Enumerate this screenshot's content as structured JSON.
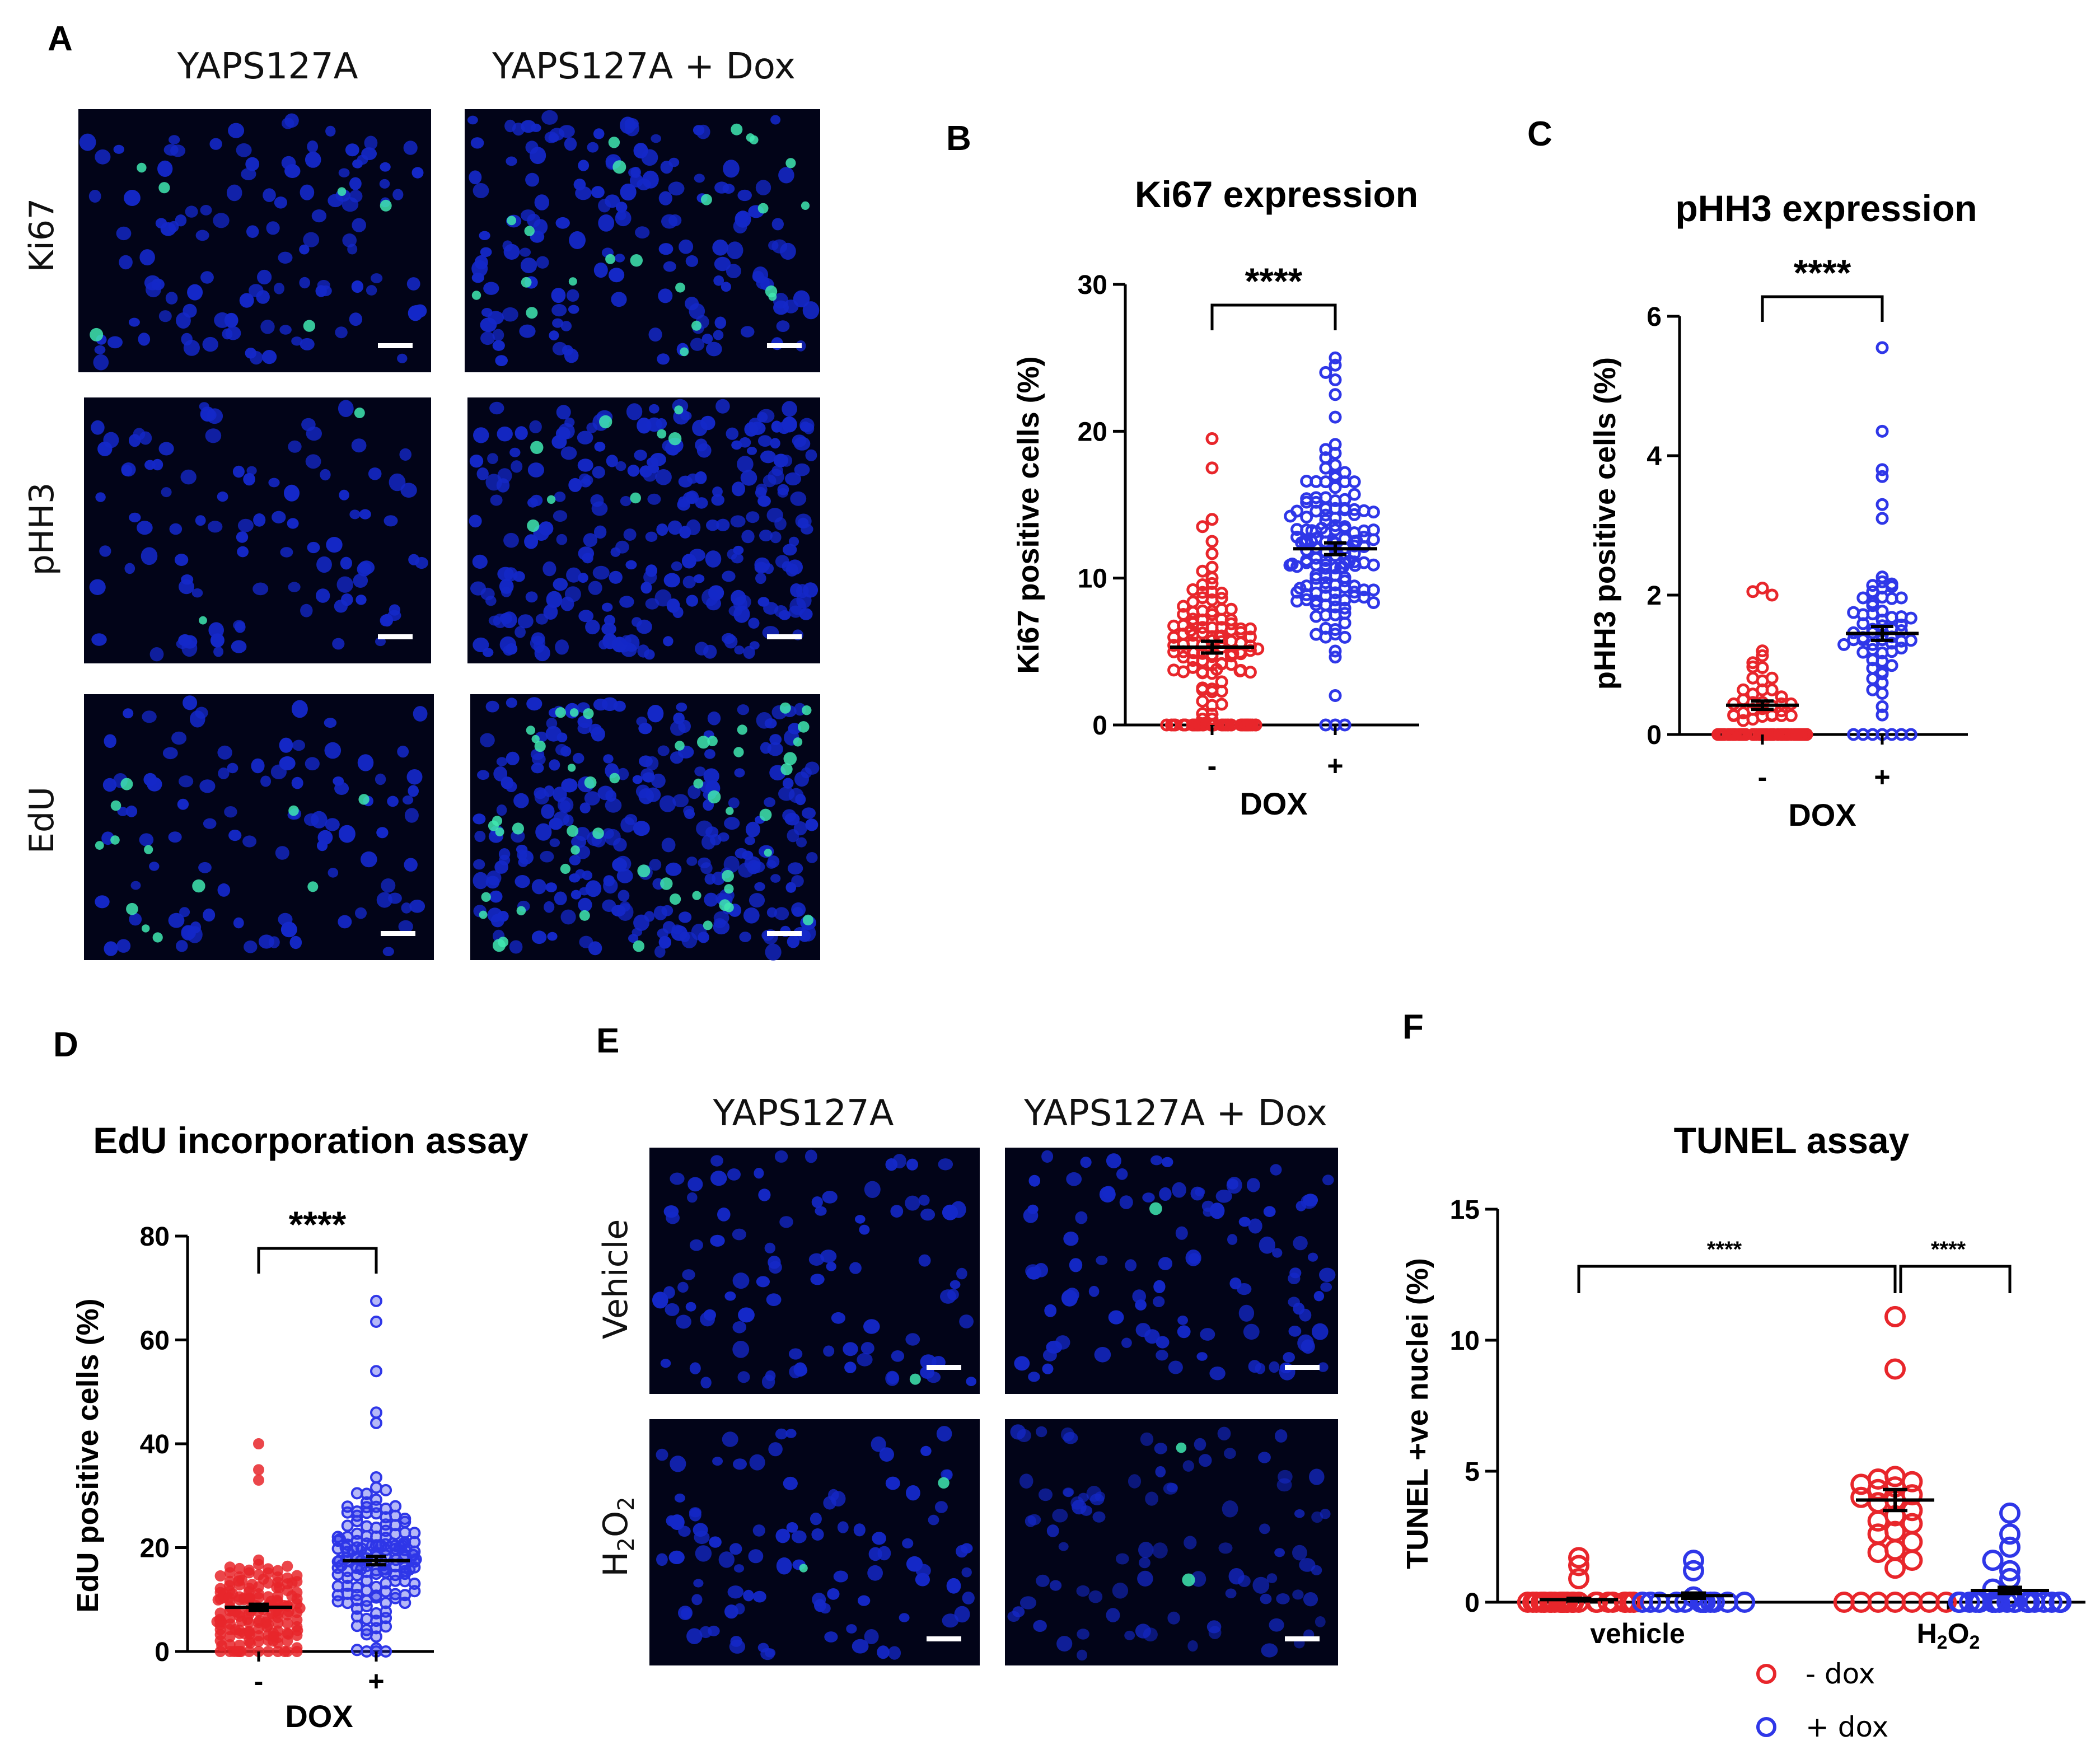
{
  "panels": {
    "A": "A",
    "B": "B",
    "C": "C",
    "D": "D",
    "E": "E",
    "F": "F"
  },
  "micro_A": {
    "col_headers": [
      "YAPS127A",
      "YAPS127A + Dox"
    ],
    "row_labels": [
      "Ki67",
      "pHH3",
      "EdU"
    ]
  },
  "micro_E": {
    "col_headers": [
      "YAPS127A",
      "YAPS127A + Dox"
    ],
    "row_labels": [
      "Vehicle",
      "H2O2"
    ]
  },
  "colors": {
    "neg": "#e8262b",
    "pos": "#2f37e8",
    "micro_bg": "#020418",
    "nucleus": "#1428c8",
    "stain": "#40e8b0"
  },
  "chart_data": [
    {
      "id": "B",
      "type": "scatter",
      "title": "Ki67 expression",
      "ylabel": "Ki67 positive cells (%)",
      "xlabel": "DOX",
      "categories": [
        "-",
        "+"
      ],
      "ylim": [
        0,
        30
      ],
      "yticks": [
        0,
        10,
        20,
        30
      ],
      "significance": "****",
      "series": [
        {
          "name": "-",
          "n": 150,
          "mean": 5.3,
          "sem": 0.4,
          "max": 19.5,
          "zero_fraction": 0.3,
          "spread": 3.8,
          "outliers": [
            19.5,
            17.5,
            14,
            13.5,
            12.5
          ]
        },
        {
          "name": "+",
          "n": 150,
          "mean": 12.0,
          "sem": 0.4,
          "max": 25.0,
          "zero_fraction": 0.01,
          "spread": 4.6,
          "outliers": [
            25,
            24.5,
            24,
            23.5,
            22.5,
            2,
            0
          ]
        }
      ]
    },
    {
      "id": "C",
      "type": "scatter",
      "title": "pHH3 expression",
      "ylabel": "pHH3 positive cells (%)",
      "xlabel": "DOX",
      "categories": [
        "-",
        "+"
      ],
      "ylim": [
        0,
        6
      ],
      "yticks": [
        0,
        2,
        4,
        6
      ],
      "significance": "****",
      "series": [
        {
          "name": "-",
          "n": 120,
          "mean": 0.42,
          "sem": 0.06,
          "max": 2.1,
          "zero_fraction": 0.7,
          "spread": 0.6,
          "outliers": [
            2.1,
            2.05,
            2.0
          ]
        },
        {
          "name": "+",
          "n": 70,
          "mean": 1.45,
          "sem": 0.1,
          "max": 5.55,
          "zero_fraction": 0.1,
          "spread": 0.7,
          "outliers": [
            5.55,
            4.35,
            3.8,
            3.7,
            3.3,
            3.1
          ]
        }
      ]
    },
    {
      "id": "D",
      "type": "scatter",
      "title": "EdU incorporation assay",
      "ylabel": "EdU positive cells (%)",
      "xlabel": "DOX",
      "categories": [
        "-",
        "+"
      ],
      "ylim": [
        0,
        80
      ],
      "yticks": [
        0,
        20,
        40,
        60,
        80
      ],
      "significance": "****",
      "series": [
        {
          "name": "-",
          "n": 160,
          "mean": 8.5,
          "sem": 0.6,
          "max": 40,
          "zero_fraction": 0.08,
          "spread": 6.5,
          "outliers": [
            40,
            35,
            33
          ]
        },
        {
          "name": "+",
          "n": 160,
          "mean": 17.5,
          "sem": 0.8,
          "max": 67.5,
          "zero_fraction": 0.02,
          "spread": 9,
          "outliers": [
            67.5,
            63.5,
            54,
            46,
            44
          ]
        }
      ]
    },
    {
      "id": "F",
      "type": "scatter",
      "title": "TUNEL assay",
      "ylabel": "TUNEL +ve nuclei (%)",
      "categories": [
        "vehicle",
        "H2O2"
      ],
      "ylim": [
        0,
        15
      ],
      "yticks": [
        0,
        5,
        10,
        15
      ],
      "significance": [
        "****",
        "****"
      ],
      "legend": [
        "- dox",
        "+ dox"
      ],
      "legend_position": "bottom-right",
      "series": [
        {
          "name": "- dox",
          "values_vehicle": {
            "n": 30,
            "mean": 0.1,
            "sem": 0.05,
            "points": [
              1.7,
              1.4,
              0.9
            ]
          },
          "values_h2o2": {
            "n": 30,
            "mean": 3.9,
            "sem": 0.4,
            "points": [
              10.9,
              8.9,
              4.8,
              4.7,
              4.6,
              4.5,
              4.4,
              4.3,
              4.1,
              4.0,
              3.9,
              3.8,
              3.5,
              3.3,
              3.1,
              3.0,
              2.7,
              2.6,
              2.3,
              2.0,
              1.9,
              1.6,
              1.3
            ]
          }
        },
        {
          "name": "+ dox",
          "values_vehicle": {
            "n": 15,
            "mean": 0.25,
            "sem": 0.1,
            "points": [
              1.6,
              1.2,
              0.2
            ]
          },
          "values_h2o2": {
            "n": 30,
            "mean": 0.45,
            "sem": 0.12,
            "points": [
              3.4,
              2.6,
              2.1,
              1.6,
              1.2,
              0.9,
              0.5,
              0.2
            ]
          }
        }
      ]
    }
  ]
}
